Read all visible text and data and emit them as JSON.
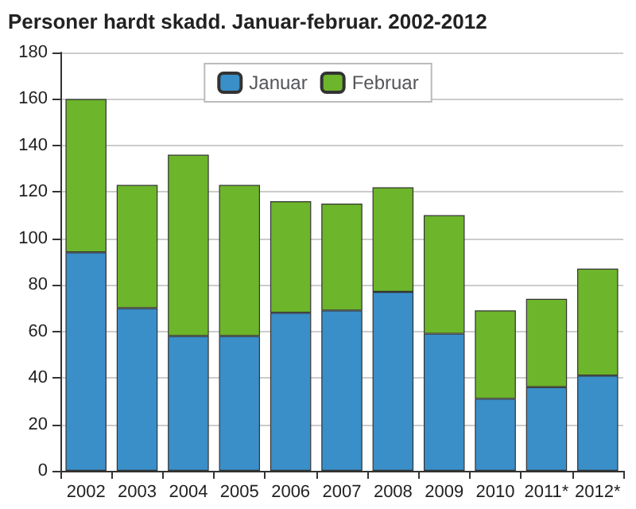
{
  "chart_data": {
    "type": "bar",
    "title": "Personer hardt skadd. Januar-februar. 2002-2012",
    "categories": [
      "2002",
      "2003",
      "2004",
      "2005",
      "2006",
      "2007",
      "2008",
      "2009",
      "2010",
      "2011*",
      "2012*"
    ],
    "stacked": true,
    "series": [
      {
        "name": "Januar",
        "color": "#3a8fc8",
        "values": [
          94,
          70,
          58,
          58,
          68,
          69,
          77,
          59,
          31,
          36,
          41
        ]
      },
      {
        "name": "Februar",
        "color": "#6db52b",
        "values": [
          66,
          53,
          78,
          65,
          48,
          46,
          45,
          51,
          38,
          38,
          46
        ]
      }
    ],
    "ylim": [
      0,
      180
    ],
    "yticks": [
      0,
      20,
      40,
      60,
      80,
      100,
      120,
      140,
      160,
      180
    ],
    "grid": "y",
    "legend": "top"
  }
}
